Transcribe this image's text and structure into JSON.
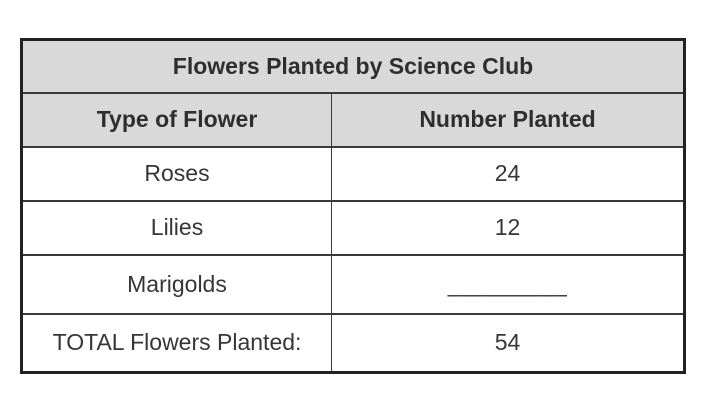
{
  "table": {
    "title": "Flowers Planted by Science Club",
    "columns": {
      "type": "Type of Flower",
      "number": "Number Planted"
    },
    "rows": [
      {
        "type": "Roses",
        "number": "24"
      },
      {
        "type": "Lilies",
        "number": "12"
      },
      {
        "type": "Marigolds",
        "number": "_________"
      },
      {
        "type": "TOTAL Flowers Planted:",
        "number": "54"
      }
    ],
    "colors": {
      "header_background": "#d9d9d9",
      "body_background": "#ffffff",
      "border": "#3a3a3a",
      "outer_border": "#222222",
      "text": "#363636"
    }
  }
}
